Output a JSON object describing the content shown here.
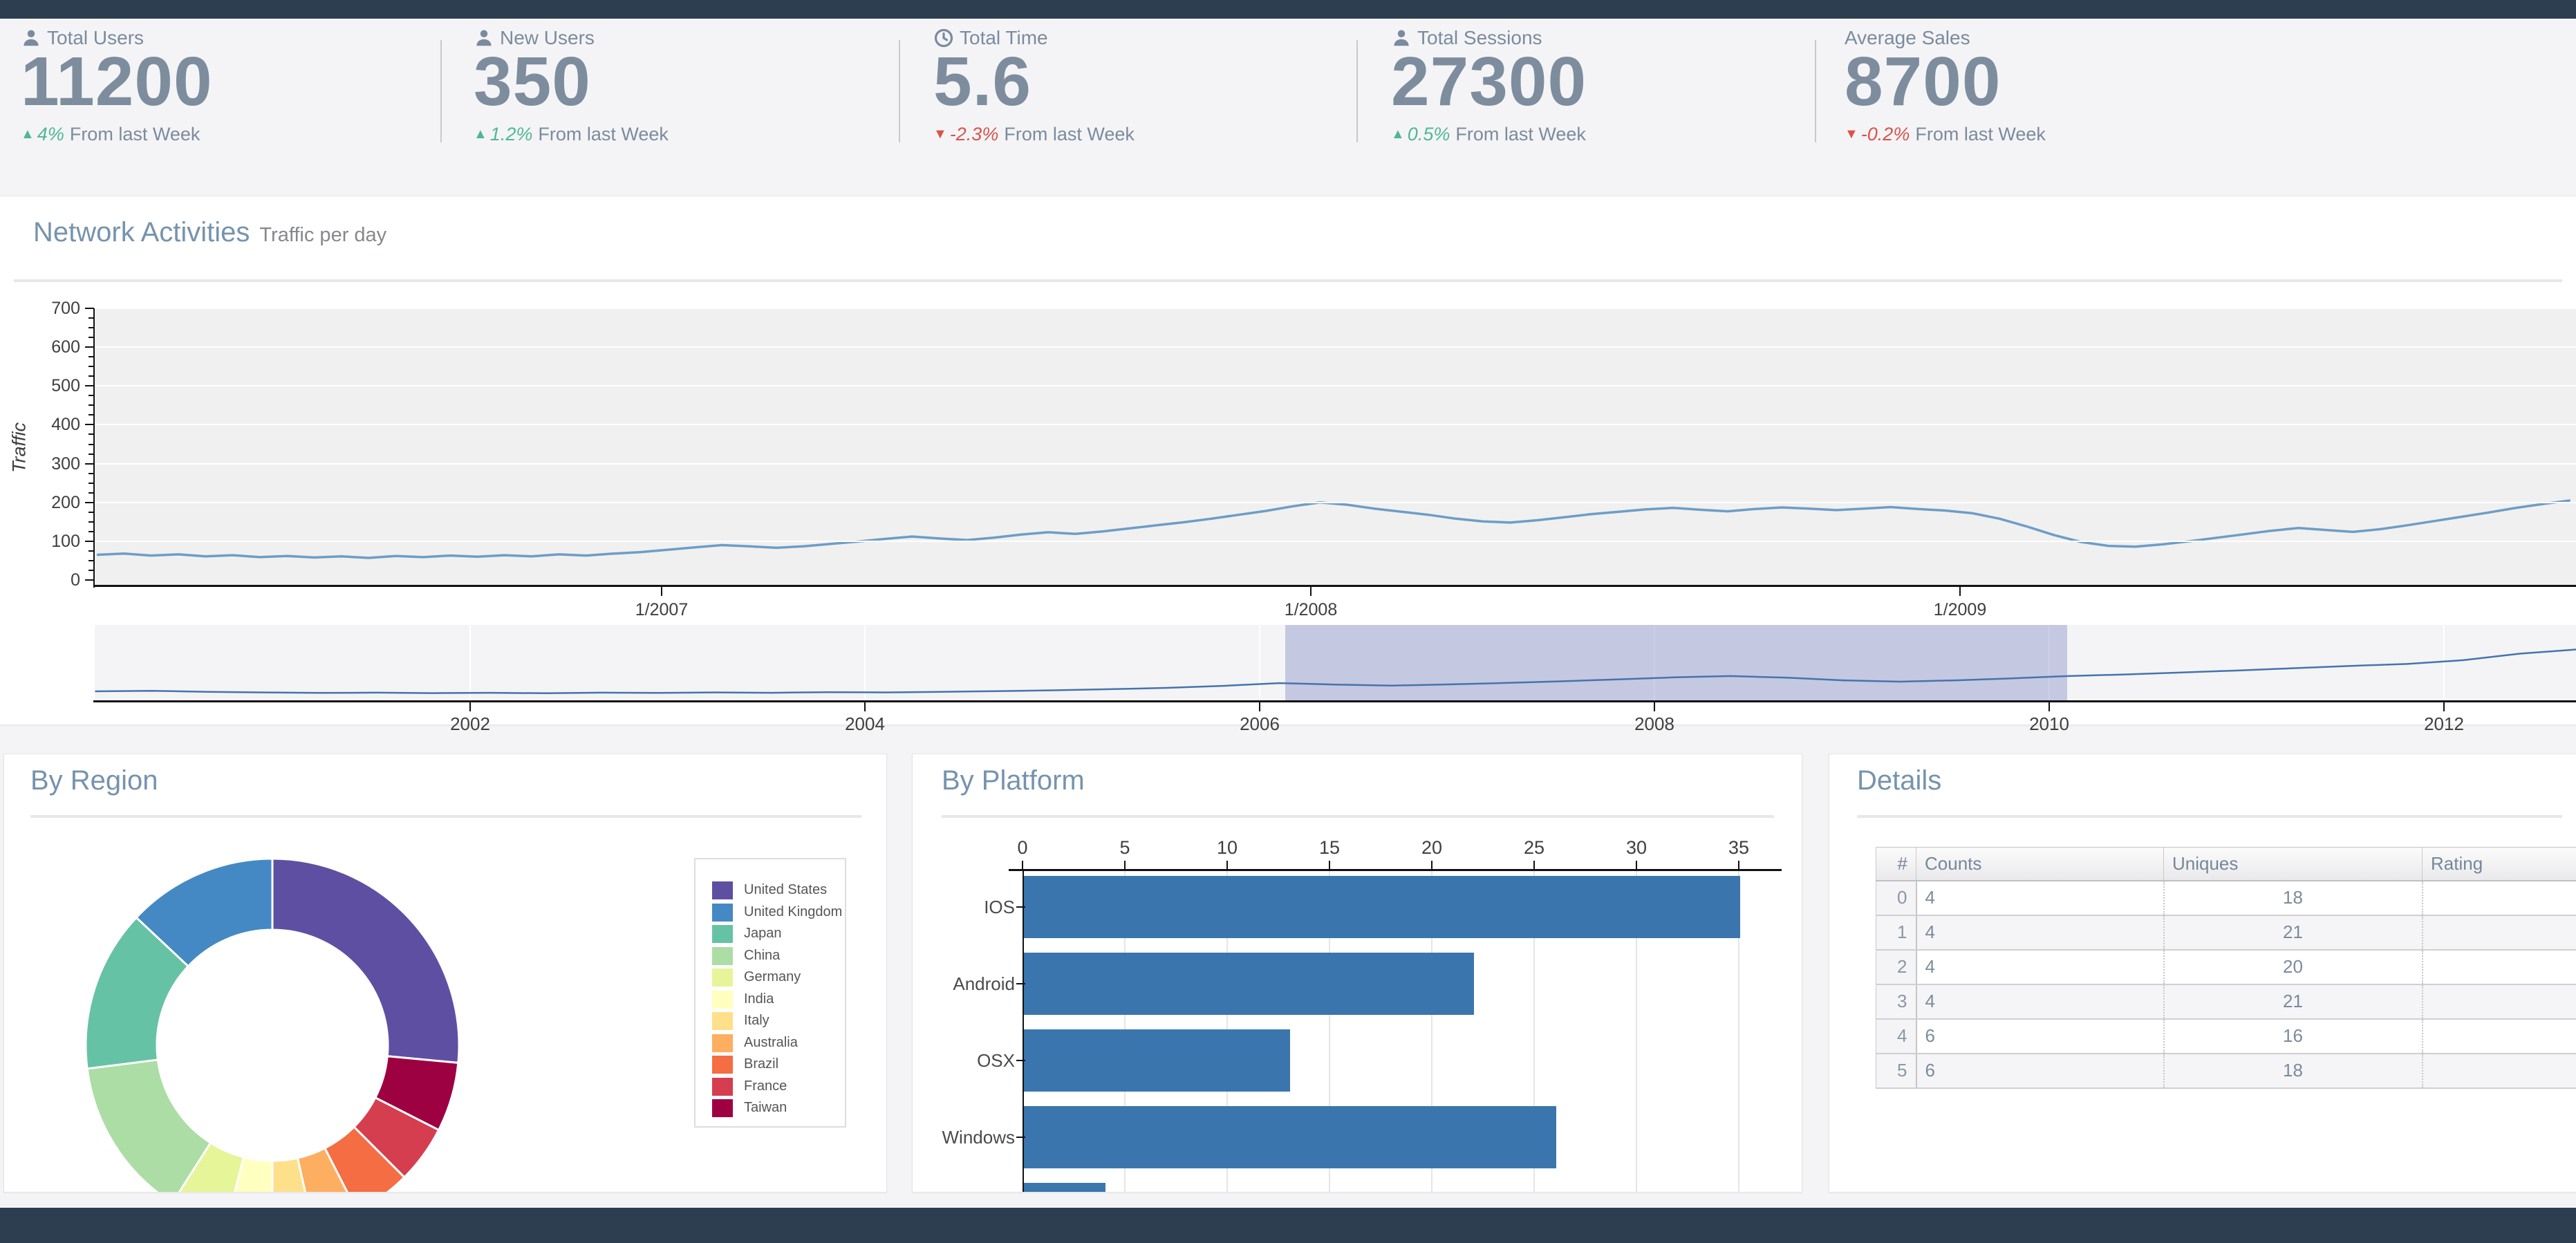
{
  "stats": [
    {
      "icon": "user-icon",
      "label": "Total Users",
      "value": "11200",
      "arrow": "▲",
      "direction": "up",
      "delta": "4%",
      "note": "From last Week"
    },
    {
      "icon": "user-icon",
      "label": "New Users",
      "value": "350",
      "arrow": "▲",
      "direction": "up",
      "delta": "1.2%",
      "note": "From last Week"
    },
    {
      "icon": "clock-icon",
      "label": "Total Time",
      "value": "5.6",
      "arrow": "▼",
      "direction": "down",
      "delta": "-2.3%",
      "note": "From last Week"
    },
    {
      "icon": "user-icon",
      "label": "Total Sessions",
      "value": "27300",
      "arrow": "▲",
      "direction": "up",
      "delta": "0.5%",
      "note": "From last Week"
    },
    {
      "icon": null,
      "label": "Average Sales",
      "value": "8700",
      "arrow": "▼",
      "direction": "down",
      "delta": "-0.2%",
      "note": "From last Week"
    }
  ],
  "network": {
    "title": "Network Activities",
    "subtitle": "Traffic per day"
  },
  "region": {
    "title": "By Region"
  },
  "platform": {
    "title": "By Platform"
  },
  "details": {
    "title": "Details",
    "columns": [
      "#",
      "Counts",
      "Uniques",
      "Rating"
    ],
    "rows": [
      [
        "0",
        "4",
        "18",
        ""
      ],
      [
        "1",
        "4",
        "21",
        ""
      ],
      [
        "2",
        "4",
        "20",
        ""
      ],
      [
        "3",
        "4",
        "21",
        ""
      ],
      [
        "4",
        "6",
        "16",
        ""
      ],
      [
        "5",
        "6",
        "18",
        ""
      ]
    ]
  },
  "colors": {
    "topbar": "#2c3e50",
    "accent_slate": "#7693ad",
    "positive": "#50b794",
    "negative": "#d8544a",
    "traffic_line": "#6d9dc6",
    "navigator_line": "#4474ae",
    "platform_bar": "#3a76ad",
    "selection_fill": "rgba(100,108,180,0.32)"
  },
  "chart_data": [
    {
      "id": "traffic",
      "type": "line",
      "title": "Network Activities - Traffic per day",
      "ylabel": "Traffic",
      "ylim": [
        0,
        700
      ],
      "y_ticks": [
        0,
        100,
        200,
        300,
        400,
        500,
        600,
        700
      ],
      "x_tick_labels": [
        "1/2007",
        "1/2008",
        "1/2009"
      ],
      "x_tick_years": [
        2007,
        2008,
        2009
      ],
      "x_range_years": [
        2006.13,
        2009.94
      ],
      "grid": true,
      "t_start": 2006.13,
      "t_step": 0.04187,
      "values": [
        65,
        68,
        63,
        66,
        61,
        64,
        59,
        62,
        58,
        61,
        57,
        62,
        59,
        63,
        60,
        64,
        61,
        66,
        63,
        68,
        72,
        78,
        84,
        90,
        87,
        83,
        87,
        93,
        99,
        106,
        112,
        107,
        103,
        109,
        117,
        123,
        119,
        125,
        133,
        141,
        149,
        158,
        168,
        178,
        190,
        200,
        194,
        184,
        176,
        168,
        158,
        151,
        148,
        154,
        162,
        170,
        176,
        182,
        186,
        181,
        177,
        183,
        187,
        184,
        180,
        184,
        188,
        183,
        179,
        172,
        158,
        138,
        116,
        98,
        88,
        86,
        92,
        100,
        109,
        118,
        127,
        134,
        129,
        124,
        131,
        141,
        152,
        163,
        174,
        186,
        196,
        205
      ]
    },
    {
      "id": "navigator",
      "type": "line",
      "x_tick_years": [
        2002,
        2004,
        2006,
        2008,
        2010,
        2012
      ],
      "x_range_years": [
        2000.1,
        2012.67
      ],
      "selection_years": [
        2006.13,
        2010.09
      ],
      "t_start": 2000.1,
      "t_step": 0.2857,
      "values": [
        55,
        58,
        52,
        48,
        45,
        47,
        44,
        46,
        43,
        47,
        45,
        48,
        46,
        50,
        48,
        52,
        56,
        61,
        68,
        76,
        88,
        105,
        96,
        90,
        97,
        106,
        116,
        128,
        140,
        148,
        138,
        122,
        114,
        122,
        134,
        148,
        158,
        170,
        182,
        196,
        210,
        222,
        245,
        285,
        310
      ]
    },
    {
      "id": "by_region",
      "type": "pie",
      "legend_position": "right",
      "inner_radius_ratio": 0.62,
      "slices": [
        {
          "name": "United States",
          "value": 26.5,
          "color": "#5e4fa2"
        },
        {
          "name": "United Kingdom",
          "value": 13.0,
          "color": "#4489c4"
        },
        {
          "name": "Japan",
          "value": 14.0,
          "color": "#66c2a5"
        },
        {
          "name": "China",
          "value": 14.0,
          "color": "#abdda4"
        },
        {
          "name": "Germany",
          "value": 5.0,
          "color": "#e6f598"
        },
        {
          "name": "India",
          "value": 4.0,
          "color": "#ffffbf"
        },
        {
          "name": "Italy",
          "value": 3.5,
          "color": "#fee08b"
        },
        {
          "name": "Australia",
          "value": 4.0,
          "color": "#fdae61"
        },
        {
          "name": "Brazil",
          "value": 5.0,
          "color": "#f46d43"
        },
        {
          "name": "France",
          "value": 5.0,
          "color": "#d53e4f"
        },
        {
          "name": "Taiwan",
          "value": 6.0,
          "color": "#9e0142"
        }
      ]
    },
    {
      "id": "by_platform",
      "type": "bar",
      "orientation": "horizontal",
      "categories": [
        "IOS",
        "Android",
        "OSX",
        "Windows",
        ""
      ],
      "values": [
        35,
        22,
        13,
        26,
        4
      ],
      "x_ticks": [
        0,
        5,
        10,
        15,
        20,
        25,
        30,
        35
      ],
      "xlim": [
        0,
        37
      ],
      "grid": true
    }
  ]
}
